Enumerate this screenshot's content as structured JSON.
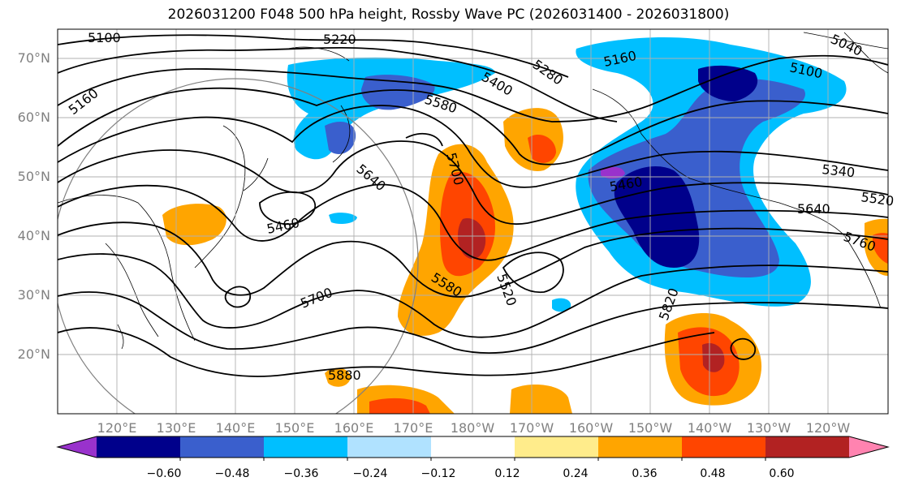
{
  "title": "2026031200 F048 500 hPa height, Rossby Wave PC (2026031400 - 2026031800)",
  "map": {
    "lat_labels": [
      "70°N",
      "60°N",
      "50°N",
      "40°N",
      "30°N",
      "20°N"
    ],
    "lon_labels": [
      "120°E",
      "130°E",
      "140°E",
      "150°E",
      "160°E",
      "170°E",
      "180°W",
      "170°W",
      "160°W",
      "150°W",
      "140°W",
      "130°W",
      "120°W"
    ],
    "contour_labels": [
      "5100",
      "5220",
      "5160",
      "5160",
      "5280",
      "5400",
      "5580",
      "5700",
      "5640",
      "5460",
      "5460",
      "5340",
      "5520",
      "5640",
      "5760",
      "5700",
      "5580",
      "5520",
      "5820",
      "5880",
      "5040",
      "5100"
    ]
  },
  "colorbar": {
    "tick_labels": [
      "−0.60",
      "−0.48",
      "−0.36",
      "−0.24",
      "−0.12",
      "0.12",
      "0.24",
      "0.36",
      "0.48",
      "0.60"
    ],
    "colors": [
      "#9932cc",
      "#00008b",
      "#3a5fcd",
      "#00bfff",
      "#b0e2ff",
      "#ffffff",
      "#ffec8b",
      "#ffa500",
      "#ff4500",
      "#b22222",
      "#ff83b0"
    ]
  }
}
